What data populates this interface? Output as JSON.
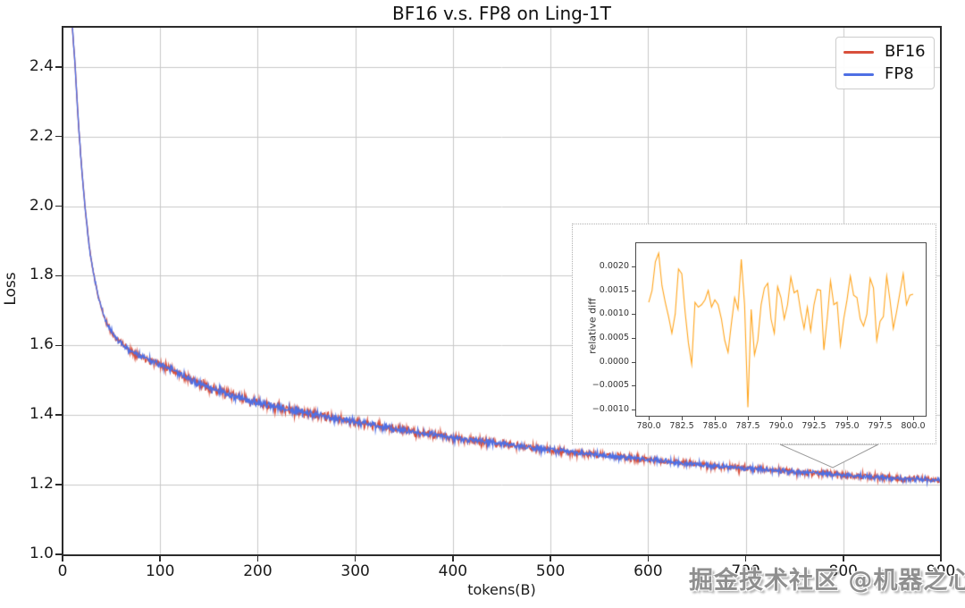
{
  "figure": {
    "title": "BF16 v.s. FP8 on Ling-1T",
    "watermark": "掘金技术社区 @机器之心"
  },
  "chart_data": {
    "type": "line",
    "title": "BF16 v.s. FP8 on Ling-1T",
    "xlabel": "tokens(B)",
    "ylabel": "Loss",
    "xlim": [
      0,
      900
    ],
    "ylim": [
      1.0,
      2.515
    ],
    "xticks": [
      0,
      100,
      200,
      300,
      400,
      500,
      600,
      700,
      800,
      900
    ],
    "yticks": [
      1.0,
      1.2,
      1.4,
      1.6,
      1.8,
      2.0,
      2.2,
      2.4
    ],
    "grid": true,
    "grid_color": "#c9c9c9",
    "legend": {
      "position": "upper right",
      "entries": [
        {
          "label": "BF16",
          "color": "#d9503c"
        },
        {
          "label": "FP8",
          "color": "#4e6fe4"
        }
      ]
    },
    "base_curve_keypoints": [
      [
        7,
        2.75
      ],
      [
        10,
        2.52
      ],
      [
        13,
        2.4
      ],
      [
        17,
        2.21
      ],
      [
        22,
        2.03
      ],
      [
        28,
        1.87
      ],
      [
        35,
        1.76
      ],
      [
        44,
        1.67
      ],
      [
        55,
        1.62
      ],
      [
        70,
        1.585
      ],
      [
        90,
        1.558
      ],
      [
        110,
        1.535
      ],
      [
        140,
        1.49
      ],
      [
        170,
        1.46
      ],
      [
        200,
        1.435
      ],
      [
        250,
        1.405
      ],
      [
        300,
        1.38
      ],
      [
        350,
        1.357
      ],
      [
        400,
        1.335
      ],
      [
        450,
        1.317
      ],
      [
        500,
        1.3
      ],
      [
        550,
        1.286
      ],
      [
        600,
        1.272
      ],
      [
        650,
        1.258
      ],
      [
        700,
        1.247
      ],
      [
        750,
        1.237
      ],
      [
        800,
        1.228
      ],
      [
        850,
        1.219
      ],
      [
        900,
        1.212
      ]
    ],
    "noise_profile": [
      [
        8,
        0.003
      ],
      [
        30,
        0.006
      ],
      [
        80,
        0.009
      ],
      [
        150,
        0.011
      ],
      [
        250,
        0.011
      ],
      [
        400,
        0.0095
      ],
      [
        600,
        0.008
      ],
      [
        900,
        0.0072
      ]
    ],
    "series": [
      {
        "name": "BF16",
        "color": "#d9503c",
        "seed": 11,
        "noise_scale": 1.25
      },
      {
        "name": "FP8",
        "color": "#4e6fe4",
        "seed": 47,
        "noise_scale": 1.0
      }
    ],
    "inset": {
      "type": "line",
      "ylabel": "relative diff",
      "line_color": "#ffa51e",
      "xticks": [
        780.0,
        782.5,
        785.0,
        787.5,
        790.0,
        792.5,
        795.0,
        797.5,
        800.0
      ],
      "yticks": [
        0.002,
        0.0015,
        0.001,
        0.0005,
        0.0,
        -0.0005,
        -0.001
      ],
      "xlim": [
        779.05,
        800.95
      ],
      "ylim": [
        -0.00113,
        0.00249
      ],
      "x_start": 780,
      "x_step": 0.25,
      "values": [
        0.00125,
        0.0015,
        0.0021,
        0.00228,
        0.0016,
        0.00125,
        0.00095,
        0.0006,
        0.001,
        0.00195,
        0.00185,
        0.00105,
        0.0004,
        -5e-05,
        0.00125,
        0.00115,
        0.0012,
        0.0013,
        0.0015,
        0.00115,
        0.0013,
        0.0012,
        0.0009,
        0.00045,
        0.0002,
        0.0008,
        0.00135,
        0.0011,
        0.00215,
        0.0012,
        -0.00095,
        0.0011,
        0.00015,
        0.00045,
        0.0012,
        0.00155,
        0.00165,
        0.0009,
        0.0006,
        0.00158,
        0.00135,
        0.0009,
        0.0012,
        0.00178,
        0.00145,
        0.0015,
        0.00105,
        0.0007,
        0.00115,
        0.00065,
        0.0012,
        0.00152,
        0.0015,
        0.00025,
        0.0009,
        0.0017,
        0.0012,
        0.00125,
        0.00035,
        0.0009,
        0.0013,
        0.0018,
        0.0014,
        0.00135,
        0.0009,
        0.00075,
        0.001,
        0.00175,
        0.00155,
        0.00045,
        0.00085,
        0.00095,
        0.0018,
        0.0013,
        0.0007,
        0.00105,
        0.00145,
        0.00185,
        0.0012,
        0.0014,
        0.00142
      ]
    }
  }
}
